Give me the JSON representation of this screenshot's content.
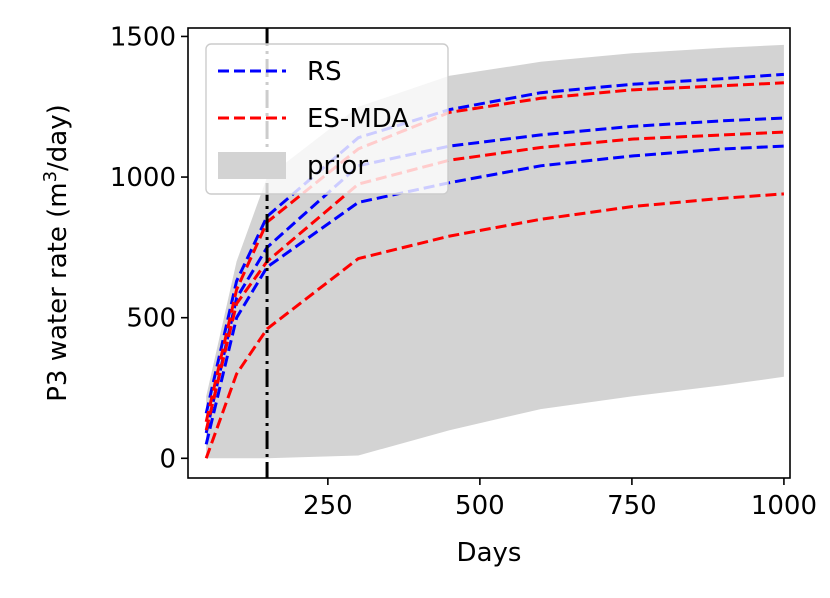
{
  "chart_data": {
    "type": "line",
    "title": "",
    "xlabel": "Days",
    "ylabel_prefix": "P3 water rate (m",
    "ylabel_sup": "3",
    "ylabel_suffix": "/day)",
    "xlim": [
      20,
      1010
    ],
    "ylim": [
      -70,
      1530
    ],
    "xticks": [
      250,
      500,
      750,
      1000
    ],
    "yticks": [
      0,
      500,
      1000,
      1500
    ],
    "vline_x": 150,
    "x": [
      50,
      100,
      150,
      300,
      450,
      600,
      750,
      900,
      1000
    ],
    "prior_band": {
      "name": "prior",
      "color": "#d3d3d3",
      "lower": [
        0,
        0,
        0,
        10,
        100,
        175,
        220,
        260,
        290
      ],
      "upper": [
        220,
        700,
        1000,
        1250,
        1360,
        1410,
        1440,
        1460,
        1470
      ]
    },
    "series": [
      {
        "name": "RS",
        "color": "#0000ff",
        "curve": "p10",
        "values": [
          50,
          500,
          680,
          910,
          980,
          1040,
          1075,
          1100,
          1110
        ]
      },
      {
        "name": "RS",
        "color": "#0000ff",
        "curve": "p50",
        "values": [
          90,
          570,
          750,
          1040,
          1110,
          1150,
          1180,
          1200,
          1210
        ]
      },
      {
        "name": "RS",
        "color": "#0000ff",
        "curve": "p90",
        "values": [
          160,
          630,
          860,
          1140,
          1240,
          1300,
          1330,
          1350,
          1365
        ]
      },
      {
        "name": "ES-MDA",
        "color": "#ff0000",
        "curve": "p10",
        "values": [
          0,
          300,
          460,
          710,
          790,
          850,
          895,
          925,
          940
        ]
      },
      {
        "name": "ES-MDA",
        "color": "#ff0000",
        "curve": "p50",
        "values": [
          100,
          550,
          700,
          975,
          1060,
          1105,
          1135,
          1150,
          1160
        ]
      },
      {
        "name": "ES-MDA",
        "color": "#ff0000",
        "curve": "p90",
        "values": [
          130,
          600,
          840,
          1100,
          1230,
          1280,
          1310,
          1325,
          1335
        ]
      }
    ],
    "legend": {
      "position": "upper-left",
      "entries": [
        {
          "label": "RS",
          "color": "#0000ff",
          "kind": "dashed-line"
        },
        {
          "label": "ES-MDA",
          "color": "#ff0000",
          "kind": "dashed-line"
        },
        {
          "label": "prior",
          "color": "#d3d3d3",
          "kind": "patch"
        }
      ]
    }
  }
}
